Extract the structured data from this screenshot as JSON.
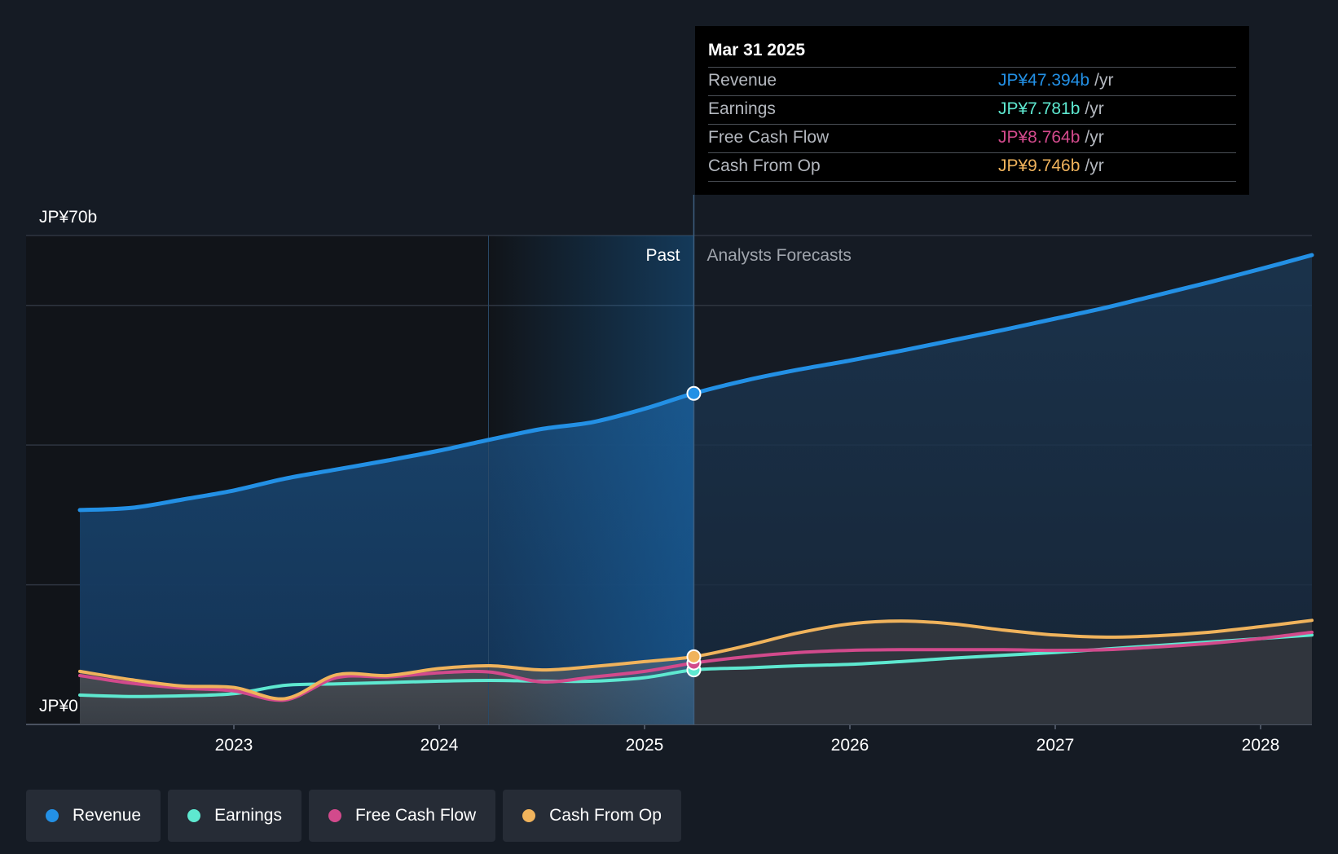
{
  "tooltip": {
    "date": "Mar 31 2025",
    "rows": [
      {
        "name": "Revenue",
        "value": "JP¥47.394b",
        "unit": "/yr"
      },
      {
        "name": "Earnings",
        "value": "JP¥7.781b",
        "unit": "/yr"
      },
      {
        "name": "Free Cash Flow",
        "value": "JP¥8.764b",
        "unit": "/yr"
      },
      {
        "name": "Cash From Op",
        "value": "JP¥9.746b",
        "unit": "/yr"
      }
    ]
  },
  "legend": [
    {
      "label": "Revenue",
      "color": "#2390e5"
    },
    {
      "label": "Earnings",
      "color": "#5ee8d0"
    },
    {
      "label": "Free Cash Flow",
      "color": "#d24a8c"
    },
    {
      "label": "Cash From Op",
      "color": "#f0b35c"
    }
  ],
  "chart_data": {
    "type": "line",
    "ylim": [
      0,
      70
    ],
    "xlim": [
      2022.2,
      2028.25
    ],
    "y_tick_labels": [
      {
        "value": 70,
        "label": "JP¥70b"
      },
      {
        "value": 0,
        "label": "JP¥0"
      }
    ],
    "x_tick_labels": [
      {
        "value": 2023,
        "label": "2023"
      },
      {
        "value": 2024,
        "label": "2024"
      },
      {
        "value": 2025,
        "label": "2025"
      },
      {
        "value": 2026,
        "label": "2026"
      },
      {
        "value": 2027,
        "label": "2027"
      },
      {
        "value": 2028,
        "label": "2028"
      }
    ],
    "gridlines_y": [
      0,
      20,
      40,
      60,
      70
    ],
    "past_label": "Past",
    "forecast_label": "Analysts Forecasts",
    "divider_x": 2025.24,
    "highlight_start_x": 2024.24,
    "series": [
      {
        "name": "Revenue",
        "color": "#2390e5",
        "points": [
          [
            2022.25,
            30.7
          ],
          [
            2022.5,
            31.0
          ],
          [
            2022.75,
            32.2
          ],
          [
            2023.0,
            33.5
          ],
          [
            2023.25,
            35.2
          ],
          [
            2023.5,
            36.5
          ],
          [
            2023.75,
            37.8
          ],
          [
            2024.0,
            39.2
          ],
          [
            2024.25,
            40.8
          ],
          [
            2024.5,
            42.3
          ],
          [
            2024.75,
            43.3
          ],
          [
            2025.0,
            45.2
          ],
          [
            2025.24,
            47.4
          ],
          [
            2025.5,
            49.3
          ],
          [
            2025.75,
            50.8
          ],
          [
            2026.0,
            52.1
          ],
          [
            2026.25,
            53.5
          ],
          [
            2026.5,
            55.0
          ],
          [
            2026.75,
            56.5
          ],
          [
            2027.0,
            58.1
          ],
          [
            2027.25,
            59.7
          ],
          [
            2027.5,
            61.5
          ],
          [
            2027.75,
            63.3
          ],
          [
            2028.0,
            65.2
          ],
          [
            2028.25,
            67.2
          ]
        ]
      },
      {
        "name": "Earnings",
        "color": "#5ee8d0",
        "points": [
          [
            2022.25,
            4.2
          ],
          [
            2022.5,
            4.0
          ],
          [
            2022.75,
            4.1
          ],
          [
            2023.0,
            4.4
          ],
          [
            2023.25,
            5.6
          ],
          [
            2023.5,
            5.8
          ],
          [
            2023.75,
            6.0
          ],
          [
            2024.0,
            6.2
          ],
          [
            2024.25,
            6.3
          ],
          [
            2024.5,
            6.2
          ],
          [
            2024.75,
            6.2
          ],
          [
            2025.0,
            6.7
          ],
          [
            2025.24,
            7.8
          ],
          [
            2025.5,
            8.1
          ],
          [
            2025.75,
            8.4
          ],
          [
            2026.0,
            8.6
          ],
          [
            2026.25,
            9.0
          ],
          [
            2026.5,
            9.5
          ],
          [
            2026.75,
            9.9
          ],
          [
            2027.0,
            10.3
          ],
          [
            2027.25,
            10.8
          ],
          [
            2027.5,
            11.3
          ],
          [
            2027.75,
            11.8
          ],
          [
            2028.0,
            12.3
          ],
          [
            2028.25,
            12.8
          ]
        ]
      },
      {
        "name": "Free Cash Flow",
        "color": "#d24a8c",
        "points": [
          [
            2022.25,
            7.0
          ],
          [
            2022.5,
            5.9
          ],
          [
            2022.75,
            5.2
          ],
          [
            2023.0,
            4.8
          ],
          [
            2023.25,
            3.5
          ],
          [
            2023.5,
            6.7
          ],
          [
            2023.75,
            6.8
          ],
          [
            2024.0,
            7.4
          ],
          [
            2024.25,
            7.5
          ],
          [
            2024.5,
            6.1
          ],
          [
            2024.75,
            6.8
          ],
          [
            2025.0,
            7.6
          ],
          [
            2025.24,
            8.8
          ],
          [
            2025.5,
            9.7
          ],
          [
            2025.75,
            10.3
          ],
          [
            2026.0,
            10.6
          ],
          [
            2026.25,
            10.7
          ],
          [
            2026.5,
            10.7
          ],
          [
            2026.75,
            10.7
          ],
          [
            2027.0,
            10.6
          ],
          [
            2027.25,
            10.7
          ],
          [
            2027.5,
            11.1
          ],
          [
            2027.75,
            11.6
          ],
          [
            2028.0,
            12.3
          ],
          [
            2028.25,
            13.2
          ]
        ]
      },
      {
        "name": "Cash From Op",
        "color": "#f0b35c",
        "points": [
          [
            2022.25,
            7.6
          ],
          [
            2022.5,
            6.4
          ],
          [
            2022.75,
            5.5
          ],
          [
            2023.0,
            5.3
          ],
          [
            2023.25,
            3.7
          ],
          [
            2023.5,
            7.1
          ],
          [
            2023.75,
            7.0
          ],
          [
            2024.0,
            8.0
          ],
          [
            2024.25,
            8.4
          ],
          [
            2024.5,
            7.8
          ],
          [
            2024.75,
            8.3
          ],
          [
            2025.0,
            9.0
          ],
          [
            2025.24,
            9.7
          ],
          [
            2025.5,
            11.3
          ],
          [
            2025.75,
            13.1
          ],
          [
            2026.0,
            14.4
          ],
          [
            2026.25,
            14.8
          ],
          [
            2026.5,
            14.4
          ],
          [
            2026.75,
            13.5
          ],
          [
            2027.0,
            12.8
          ],
          [
            2027.25,
            12.5
          ],
          [
            2027.5,
            12.7
          ],
          [
            2027.75,
            13.2
          ],
          [
            2028.0,
            14.0
          ],
          [
            2028.25,
            14.9
          ]
        ]
      }
    ]
  }
}
